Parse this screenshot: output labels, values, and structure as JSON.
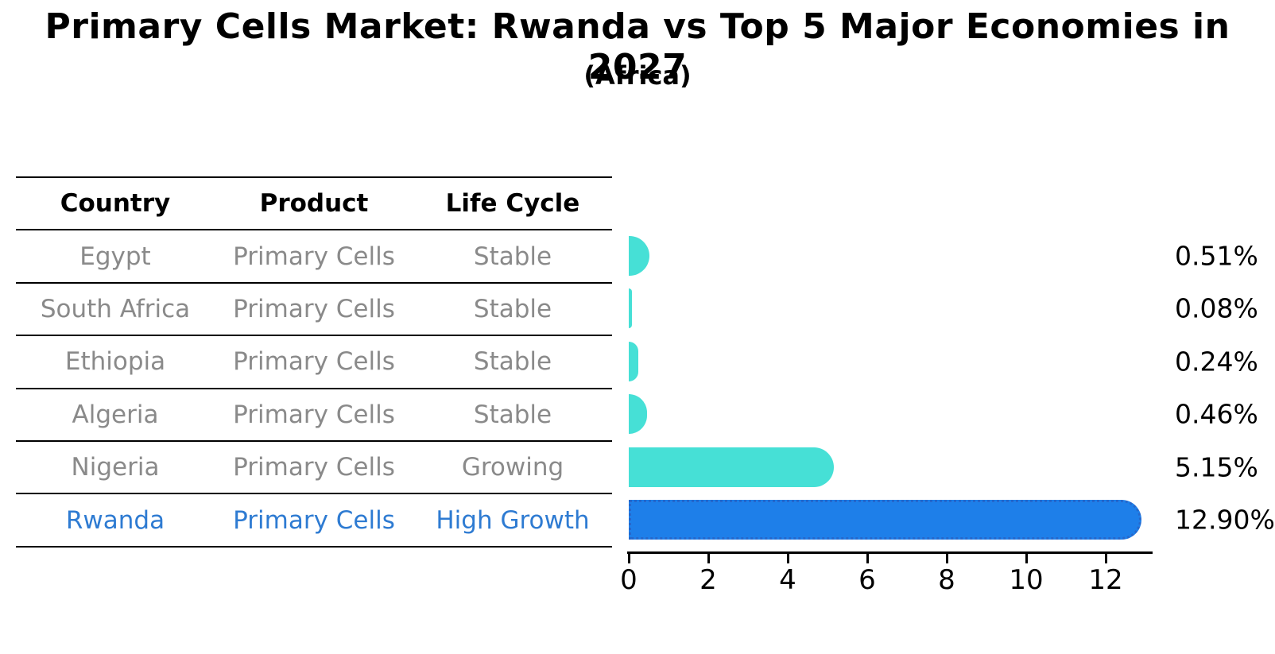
{
  "title": "Primary Cells Market: Rwanda vs Top 5 Major Economies in 2027",
  "subtitle": "(Africa)",
  "table": {
    "headers": [
      "Country",
      "Product",
      "Life Cycle"
    ],
    "rows": [
      {
        "country": "Egypt",
        "product": "Primary Cells",
        "life_cycle": "Stable",
        "highlight": false
      },
      {
        "country": "South Africa",
        "product": "Primary Cells",
        "life_cycle": "Stable",
        "highlight": false
      },
      {
        "country": "Ethiopia",
        "product": "Primary Cells",
        "life_cycle": "Stable",
        "highlight": false
      },
      {
        "country": "Algeria",
        "product": "Primary Cells",
        "life_cycle": "Stable",
        "highlight": false
      },
      {
        "country": "Nigeria",
        "product": "Primary Cells",
        "life_cycle": "Growing",
        "highlight": false
      },
      {
        "country": "Rwanda",
        "product": "Primary Cells",
        "life_cycle": "High Growth",
        "highlight": true
      }
    ]
  },
  "chart_data": {
    "type": "bar",
    "orientation": "horizontal",
    "title": "Primary Cells Market: Rwanda vs Top 5 Major Economies in 2027 (Africa)",
    "categories": [
      "Egypt",
      "South Africa",
      "Ethiopia",
      "Algeria",
      "Nigeria",
      "Rwanda"
    ],
    "values": [
      0.51,
      0.08,
      0.24,
      0.46,
      5.15,
      12.9
    ],
    "value_labels": [
      "0.51%",
      "0.08%",
      "0.24%",
      "0.46%",
      "5.15%",
      "12.90%"
    ],
    "x_ticks": [
      "0",
      "2",
      "4",
      "6",
      "8",
      "10",
      "12"
    ],
    "x_tick_values": [
      0,
      2,
      4,
      6,
      8,
      10,
      12
    ],
    "xlim": [
      0,
      13.1
    ],
    "grid": false,
    "legend": "none",
    "bar_color": "#46E0D6",
    "highlight_color": "#1E7FE9",
    "highlight_edge_color": "#2668CC",
    "highlight_index": 5
  },
  "colors": {
    "muted_text": "#8a8a8a",
    "highlight_text": "#2e7bd2",
    "axis": "#000000"
  }
}
